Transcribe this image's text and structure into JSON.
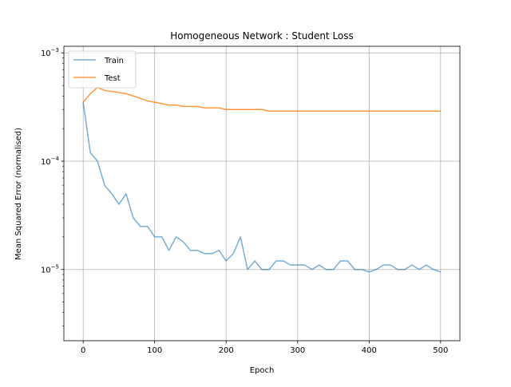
{
  "chart_data": {
    "type": "line",
    "title": "Homogeneous Network : Student Loss",
    "xlabel": "Epoch",
    "ylabel": "Mean Squared Error (normalised)",
    "yscale": "log",
    "xlim": [
      -27,
      527
    ],
    "ylim": [
      2.2e-06,
      0.00115
    ],
    "grid": true,
    "legend": {
      "placement": "top-left"
    },
    "x_ticks": [
      {
        "value": 0,
        "label": "0"
      },
      {
        "value": 100,
        "label": "100"
      },
      {
        "value": 200,
        "label": "200"
      },
      {
        "value": 300,
        "label": "300"
      },
      {
        "value": 400,
        "label": "400"
      },
      {
        "value": 500,
        "label": "500"
      }
    ],
    "y_ticks": [
      {
        "value": 1e-05,
        "base": "10",
        "exp": "−5"
      },
      {
        "value": 0.0001,
        "base": "10",
        "exp": "−4"
      },
      {
        "value": 0.001,
        "base": "10",
        "exp": "−3"
      }
    ],
    "series": [
      {
        "name": "Train",
        "color": "#1f77b4",
        "opacity": 0.6,
        "x": [
          0,
          10,
          20,
          30,
          40,
          50,
          60,
          70,
          80,
          90,
          100,
          110,
          120,
          130,
          140,
          150,
          160,
          170,
          180,
          190,
          200,
          210,
          220,
          230,
          240,
          250,
          260,
          270,
          280,
          290,
          300,
          310,
          320,
          330,
          340,
          350,
          360,
          370,
          380,
          390,
          400,
          410,
          420,
          430,
          440,
          450,
          460,
          470,
          480,
          490,
          500
        ],
        "values": [
          0.00035,
          0.00012,
          0.0001,
          6e-05,
          5e-05,
          4e-05,
          5e-05,
          3e-05,
          2.5e-05,
          2.5e-05,
          2e-05,
          2e-05,
          1.5e-05,
          2e-05,
          1.8e-05,
          1.5e-05,
          1.5e-05,
          1.4e-05,
          1.4e-05,
          1.5e-05,
          1.2e-05,
          1.4e-05,
          2e-05,
          1e-05,
          1.2e-05,
          1e-05,
          1e-05,
          1.2e-05,
          1.2e-05,
          1.1e-05,
          1.1e-05,
          1.1e-05,
          1e-05,
          1.1e-05,
          1e-05,
          1e-05,
          1.2e-05,
          1.2e-05,
          1e-05,
          1e-05,
          9.5e-06,
          1e-05,
          1.1e-05,
          1.1e-05,
          1e-05,
          1e-05,
          1.1e-05,
          1e-05,
          1.1e-05,
          1e-05,
          9.5e-06
        ]
      },
      {
        "name": "Test",
        "color": "#ff7f0e",
        "opacity": 0.8,
        "x": [
          0,
          10,
          20,
          30,
          40,
          50,
          60,
          70,
          80,
          90,
          100,
          110,
          120,
          130,
          140,
          150,
          160,
          170,
          180,
          190,
          200,
          210,
          220,
          230,
          240,
          250,
          260,
          270,
          280,
          290,
          300,
          310,
          320,
          330,
          340,
          350,
          360,
          370,
          380,
          390,
          400,
          410,
          420,
          430,
          440,
          450,
          460,
          470,
          480,
          490,
          500
        ],
        "values": [
          0.00035,
          0.00042,
          0.00048,
          0.00045,
          0.00044,
          0.00043,
          0.00042,
          0.0004,
          0.00038,
          0.00036,
          0.00035,
          0.00034,
          0.00033,
          0.00033,
          0.00032,
          0.00032,
          0.00032,
          0.00031,
          0.00031,
          0.00031,
          0.0003,
          0.0003,
          0.0003,
          0.0003,
          0.0003,
          0.0003,
          0.00029,
          0.00029,
          0.00029,
          0.00029,
          0.00029,
          0.00029,
          0.00029,
          0.00029,
          0.00029,
          0.00029,
          0.00029,
          0.00029,
          0.00029,
          0.00029,
          0.00029,
          0.00029,
          0.00029,
          0.00029,
          0.00029,
          0.00029,
          0.00029,
          0.00029,
          0.00029,
          0.00029,
          0.00029
        ]
      }
    ]
  }
}
